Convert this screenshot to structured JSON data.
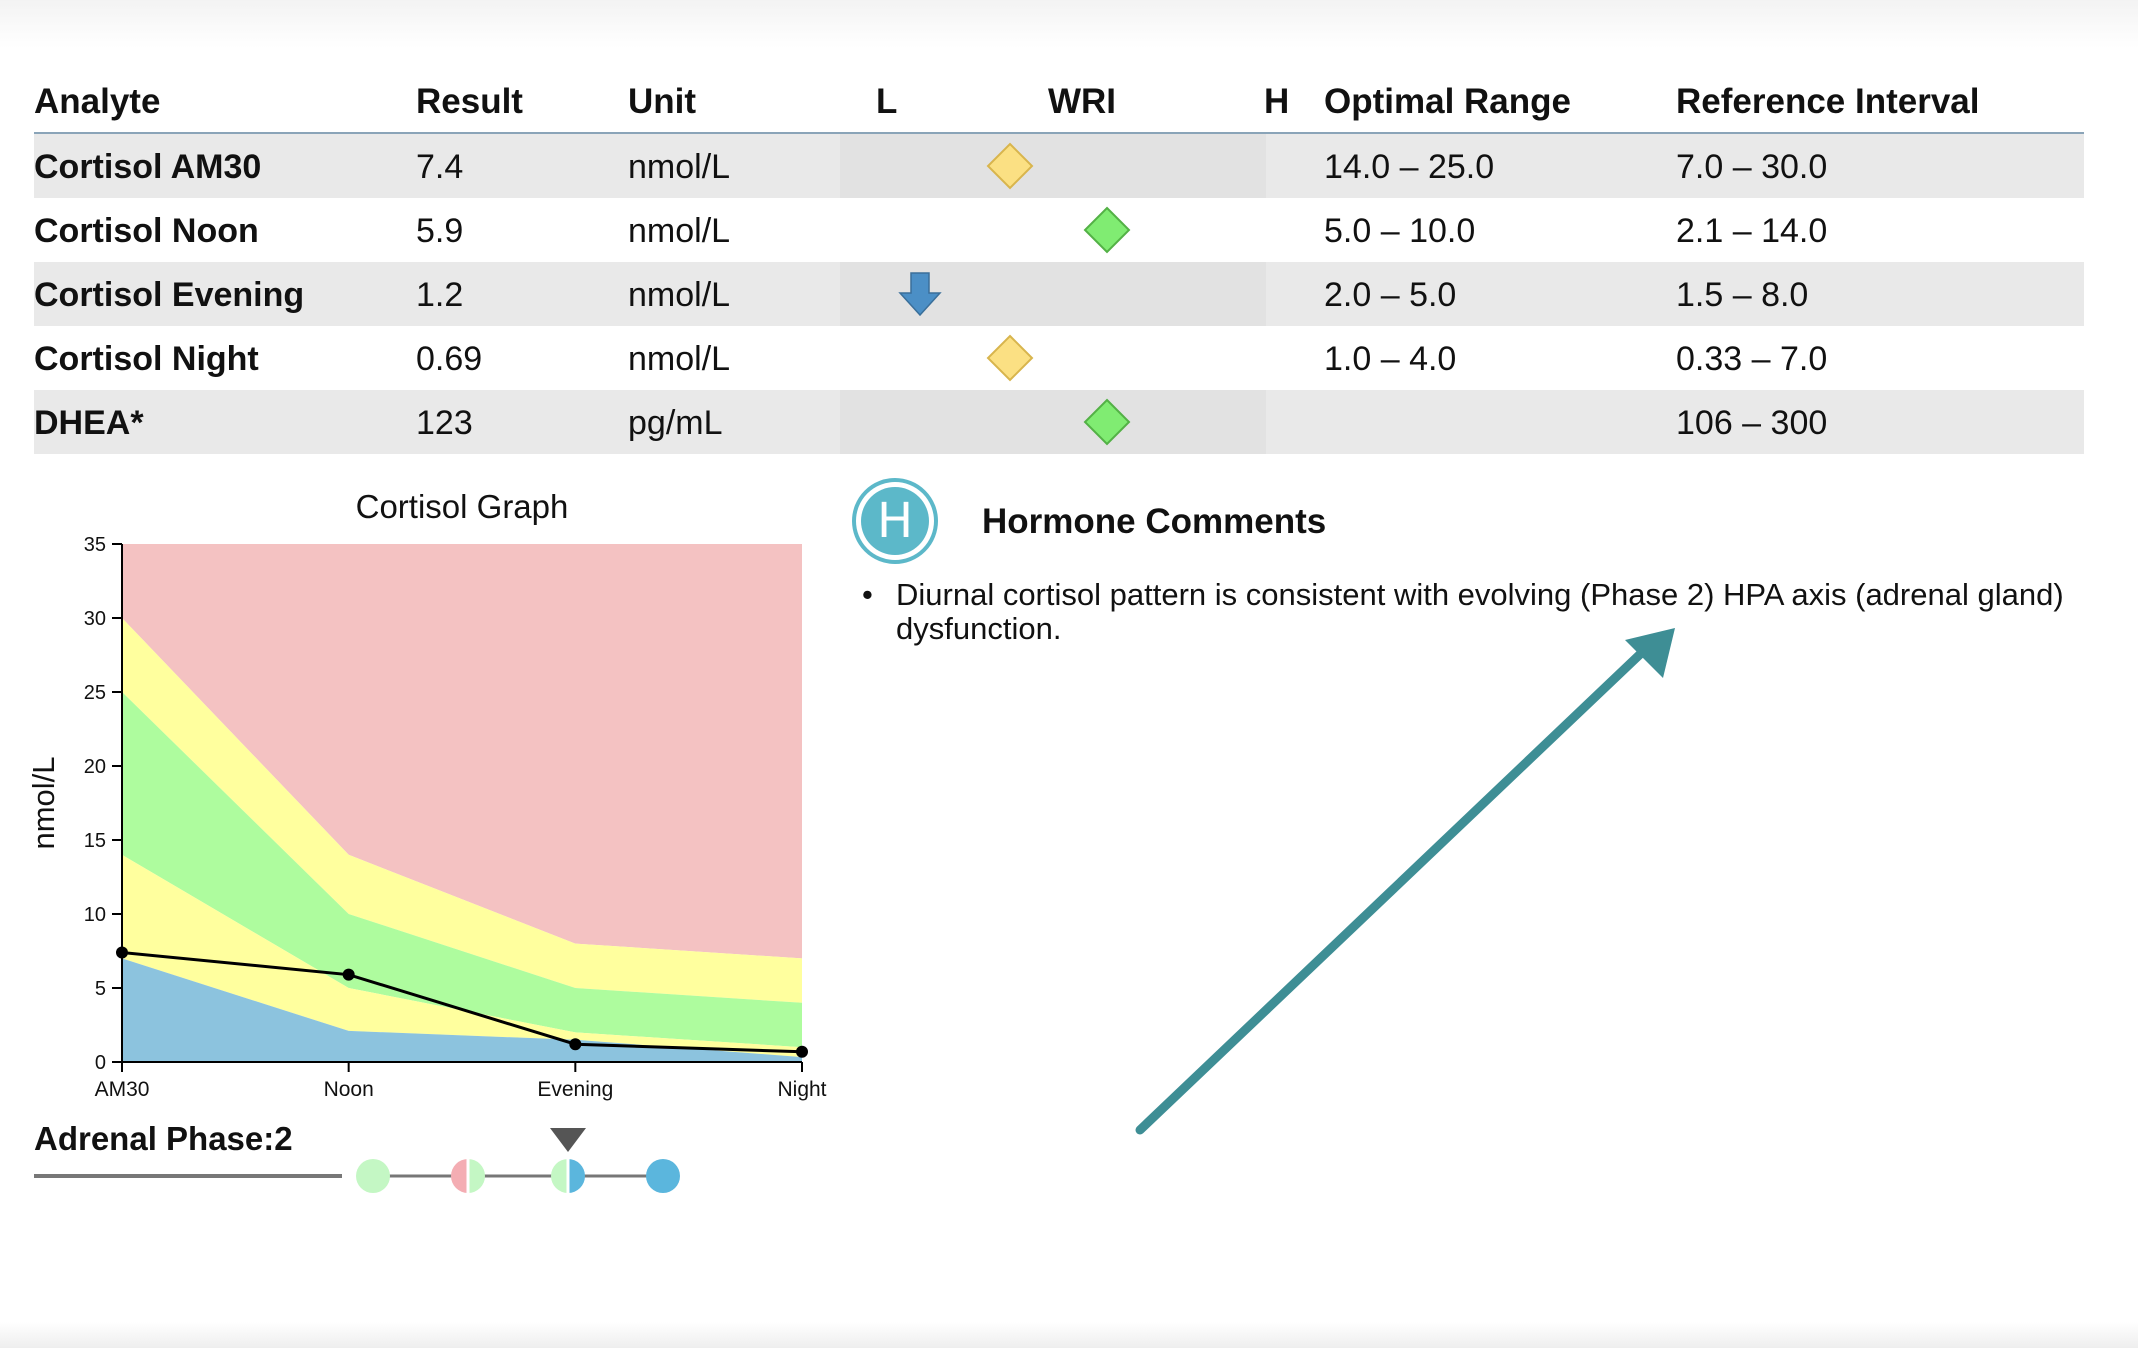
{
  "table": {
    "headers": {
      "analyte": "Analyte",
      "result": "Result",
      "unit": "Unit",
      "low": "L",
      "wri": "WRI",
      "high": "H",
      "optimal": "Optimal Range",
      "reference": "Reference Interval"
    },
    "rows": [
      {
        "analyte": "Cortisol AM30",
        "result": "7.4",
        "unit": "nmol/L",
        "optimal": "14.0 – 25.0",
        "reference": "7.0 – 30.0",
        "indicator": "yellow-diamond"
      },
      {
        "analyte": "Cortisol Noon",
        "result": "5.9",
        "unit": "nmol/L",
        "optimal": "5.0 – 10.0",
        "reference": "2.1 – 14.0",
        "indicator": "green-diamond"
      },
      {
        "analyte": "Cortisol Evening",
        "result": "1.2",
        "unit": "nmol/L",
        "optimal": "2.0 – 5.0",
        "reference": "1.5 – 8.0",
        "indicator": "low-arrow"
      },
      {
        "analyte": "Cortisol Night",
        "result": "0.69",
        "unit": "nmol/L",
        "optimal": "1.0 – 4.0",
        "reference": "0.33 – 7.0",
        "indicator": "yellow-diamond"
      },
      {
        "analyte": "DHEA*",
        "result": "123",
        "unit": "pg/mL",
        "optimal": "",
        "reference": "106 – 300",
        "indicator": "green-diamond"
      }
    ]
  },
  "chart_data": {
    "type": "area",
    "title": "Cortisol Graph",
    "ylabel": "nmol/L",
    "xlabel": "",
    "categories": [
      "AM30",
      "Noon",
      "Evening",
      "Night"
    ],
    "ylim": [
      0,
      35
    ],
    "yticks": [
      0,
      5,
      10,
      15,
      20,
      25,
      30,
      35
    ],
    "bands": {
      "ref_low": [
        7.0,
        2.1,
        1.5,
        0.33
      ],
      "opt_low": [
        14.0,
        5.0,
        2.0,
        1.0
      ],
      "opt_high": [
        25.0,
        10.0,
        5.0,
        4.0
      ],
      "ref_high": [
        30.0,
        14.0,
        8.0,
        7.0
      ]
    },
    "band_colors": {
      "below": "#8cc3de",
      "reference": "#ffff9e",
      "optimal": "#aefc9e",
      "above": "#f4c2c2"
    },
    "series": [
      {
        "values": [
          7.4,
          5.9,
          1.2,
          0.69
        ],
        "color": "#000000"
      }
    ],
    "grid": false,
    "legend": "none"
  },
  "adrenal_phase": {
    "label": "Adrenal Phase:",
    "value": "2",
    "selected_index": 2,
    "phases": [
      {
        "left": "#c4f7c4",
        "right": "#c4f7c4"
      },
      {
        "left": "#f4adb3",
        "right": "#c4f7c4"
      },
      {
        "left": "#c4f7c4",
        "right": "#5bb6dd"
      },
      {
        "left": "#5bb6dd",
        "right": "#5bb6dd"
      }
    ]
  },
  "comments": {
    "icon_letter": "H",
    "title": "Hormone Comments",
    "items": [
      "Diurnal cortisol pattern is consistent with evolving (Phase 2) HPA axis (adrenal gland) dysfunction."
    ]
  },
  "colors": {
    "arrow": "#3e8e95",
    "accent": "#5cb8c9",
    "low_arrow": "#4b8fc6",
    "yellow_marker": "#fbe083",
    "green_marker": "#80ec72"
  }
}
